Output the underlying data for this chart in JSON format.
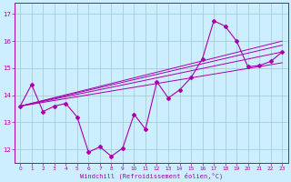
{
  "xlabel": "Windchill (Refroidissement éolien,°C)",
  "bg_color": "#cceeff",
  "line_color": "#aa00aa",
  "grid_color": "#99cccc",
  "x_ticks": [
    0,
    1,
    2,
    3,
    4,
    5,
    6,
    7,
    8,
    9,
    10,
    11,
    12,
    13,
    14,
    15,
    16,
    17,
    18,
    19,
    20,
    21,
    22,
    23
  ],
  "y_ticks": [
    12,
    13,
    14,
    15,
    16,
    17
  ],
  "xlim": [
    -0.5,
    23.5
  ],
  "ylim": [
    11.5,
    17.4
  ],
  "main_x": [
    0,
    1,
    2,
    3,
    4,
    5,
    6,
    7,
    8,
    9,
    10,
    11,
    12,
    13,
    14,
    15,
    16,
    17,
    18,
    19,
    20,
    21,
    22,
    23
  ],
  "main_y": [
    13.6,
    14.4,
    13.4,
    13.6,
    13.7,
    13.2,
    11.9,
    12.1,
    11.75,
    12.05,
    13.3,
    12.75,
    14.5,
    13.9,
    14.2,
    14.65,
    15.35,
    16.75,
    16.55,
    16.0,
    15.05,
    15.1,
    15.25,
    15.6
  ],
  "trend_lines": [
    {
      "x": [
        0,
        23
      ],
      "y": [
        13.6,
        15.6
      ]
    },
    {
      "x": [
        0,
        23
      ],
      "y": [
        13.6,
        15.2
      ]
    },
    {
      "x": [
        0,
        23
      ],
      "y": [
        13.6,
        15.85
      ]
    },
    {
      "x": [
        0,
        23
      ],
      "y": [
        13.6,
        16.0
      ]
    }
  ]
}
